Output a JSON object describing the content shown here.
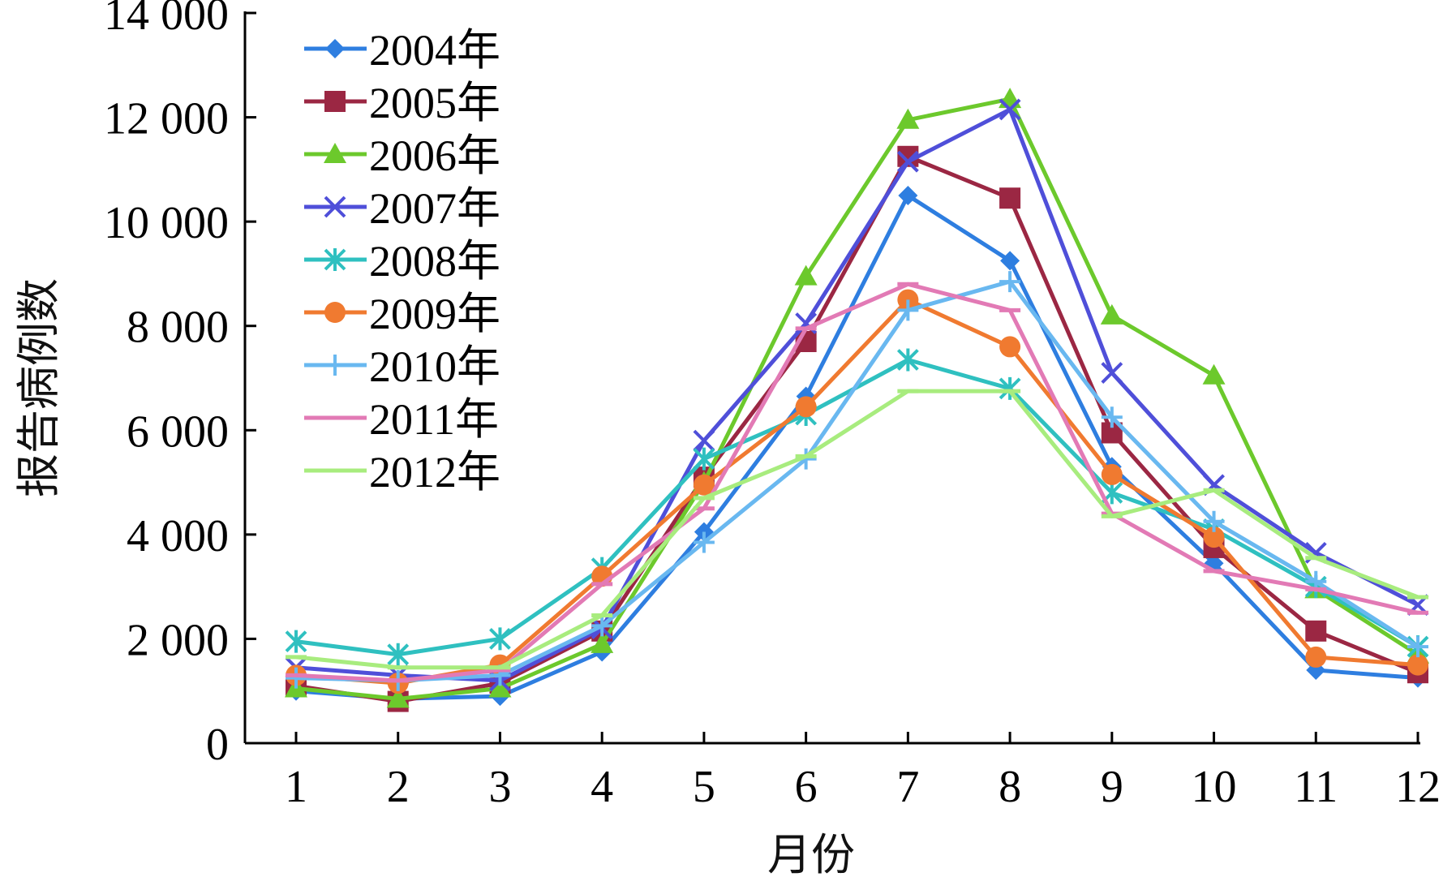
{
  "chart_data": {
    "type": "line",
    "title": "",
    "xlabel": "月份",
    "ylabel": "报告病例数",
    "x": [
      1,
      2,
      3,
      4,
      5,
      6,
      7,
      8,
      9,
      10,
      11,
      12
    ],
    "x_tick_labels": [
      "1",
      "2",
      "3",
      "4",
      "5",
      "6",
      "7",
      "8",
      "9",
      "10",
      "11",
      "12"
    ],
    "ylim": [
      0,
      14000
    ],
    "y_ticks": [
      0,
      2000,
      4000,
      6000,
      8000,
      10000,
      12000,
      14000
    ],
    "y_tick_labels": [
      "0",
      "2 000",
      "4 000",
      "6 000",
      "8 000",
      "10 000",
      "12 000",
      "14 000"
    ],
    "grid": false,
    "legend_position": "top-left",
    "series": [
      {
        "name": "2004年",
        "color": "#2e7ee0",
        "marker": "diamond",
        "values": [
          1000,
          850,
          900,
          1750,
          4050,
          6650,
          10500,
          9250,
          5300,
          3450,
          1400,
          1250
        ]
      },
      {
        "name": "2005年",
        "color": "#9b2743",
        "marker": "square",
        "values": [
          1100,
          800,
          1150,
          2150,
          5100,
          7700,
          11250,
          10450,
          5950,
          3750,
          2150,
          1350
        ]
      },
      {
        "name": "2006年",
        "color": "#6cc92c",
        "marker": "triangle",
        "values": [
          1050,
          850,
          1050,
          1900,
          5000,
          8950,
          11950,
          12350,
          8200,
          7050,
          2950,
          1700
        ]
      },
      {
        "name": "2007年",
        "color": "#4f4fd9",
        "marker": "x",
        "values": [
          1450,
          1300,
          1200,
          2200,
          5800,
          8050,
          11150,
          12150,
          7100,
          4950,
          3650,
          2650
        ]
      },
      {
        "name": "2008年",
        "color": "#2fc0c0",
        "marker": "asterisk",
        "values": [
          1950,
          1700,
          2000,
          3350,
          5450,
          6300,
          7350,
          6800,
          4800,
          4100,
          3000,
          1850
        ]
      },
      {
        "name": "2009年",
        "color": "#f07a30",
        "marker": "circle",
        "values": [
          1300,
          1150,
          1500,
          3200,
          4950,
          6450,
          8500,
          7600,
          5150,
          3950,
          1650,
          1500
        ]
      },
      {
        "name": "2010年",
        "color": "#69b8f0",
        "marker": "plus",
        "values": [
          1250,
          1200,
          1300,
          2250,
          3850,
          5450,
          8300,
          8850,
          6250,
          4250,
          3100,
          1850
        ]
      },
      {
        "name": "2011年",
        "color": "#e27ab5",
        "marker": "dash",
        "values": [
          1300,
          1200,
          1400,
          3050,
          4500,
          7950,
          8800,
          8300,
          4400,
          3300,
          2950,
          2500
        ]
      },
      {
        "name": "2012年",
        "color": "#a8ec7e",
        "marker": "dash",
        "values": [
          1650,
          1450,
          1450,
          2450,
          4700,
          5500,
          6750,
          6750,
          4350,
          4850,
          3550,
          2800
        ]
      }
    ]
  }
}
